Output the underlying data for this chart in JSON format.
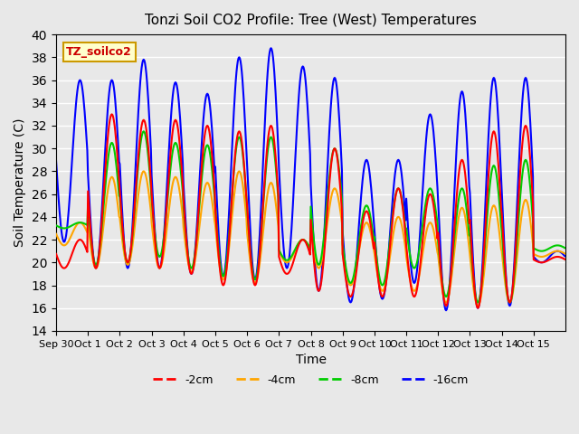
{
  "title": "Tonzi Soil CO2 Profile: Tree (West) Temperatures",
  "xlabel": "Time",
  "ylabel": "Soil Temperature (C)",
  "ylim": [
    14,
    40
  ],
  "yticks": [
    14,
    16,
    18,
    20,
    22,
    24,
    26,
    28,
    30,
    32,
    34,
    36,
    38,
    40
  ],
  "background_color": "#e8e8e8",
  "grid_color": "white",
  "colors": {
    "-2cm": "#ff0000",
    "-4cm": "#ffa500",
    "-8cm": "#00cc00",
    "-16cm": "#0000ff"
  },
  "legend_label": "TZ_soilco2",
  "legend_box_color": "#ffffcc",
  "legend_box_edge": "#cc9900",
  "x_tick_labels": [
    "Sep 30",
    "Oct 1",
    "Oct 2",
    "Oct 3",
    "Oct 4",
    "Oct 5",
    "Oct 6",
    "Oct 7",
    "Oct 8",
    "Oct 9",
    "Oct 10",
    "Oct 11",
    "Oct 12",
    "Oct 13",
    "Oct 14",
    "Oct 15"
  ],
  "line_width": 1.5,
  "mins_2cm": [
    19.5,
    19.5,
    20.0,
    19.5,
    19.0,
    18.0,
    18.0,
    19.0,
    17.5,
    17.0,
    17.0,
    17.0,
    16.2,
    16.0,
    16.5,
    20.0
  ],
  "maxs_2cm": [
    22.0,
    33.0,
    32.5,
    32.5,
    32.0,
    31.5,
    32.0,
    22.0,
    30.0,
    24.5,
    26.5,
    26.0,
    29.0,
    31.5,
    32.0,
    20.5
  ],
  "mins_4cm": [
    21.5,
    19.5,
    19.8,
    19.5,
    19.2,
    18.5,
    18.2,
    20.0,
    19.5,
    18.0,
    17.5,
    17.5,
    16.5,
    16.2,
    16.5,
    20.5
  ],
  "maxs_4cm": [
    23.5,
    27.5,
    28.0,
    27.5,
    27.0,
    28.0,
    27.0,
    22.0,
    26.5,
    23.5,
    24.0,
    23.5,
    24.8,
    25.0,
    25.5,
    21.0
  ],
  "mins_8cm": [
    23.0,
    19.8,
    20.0,
    20.5,
    19.5,
    18.8,
    18.5,
    20.2,
    19.8,
    18.2,
    18.0,
    19.5,
    17.0,
    16.5,
    16.5,
    21.0
  ],
  "maxs_8cm": [
    23.5,
    30.5,
    31.5,
    30.5,
    30.3,
    31.0,
    31.0,
    22.0,
    30.0,
    25.0,
    26.5,
    26.5,
    26.5,
    28.5,
    29.0,
    21.5
  ],
  "mins_16cm": [
    21.8,
    19.5,
    19.5,
    19.5,
    19.0,
    18.8,
    18.5,
    19.5,
    17.5,
    16.5,
    16.8,
    18.2,
    15.8,
    16.0,
    16.2,
    20.0
  ],
  "maxs_16cm": [
    36.0,
    36.0,
    37.8,
    35.8,
    34.8,
    38.0,
    38.8,
    37.2,
    36.2,
    29.0,
    29.0,
    33.0,
    35.0,
    36.2,
    36.2,
    21.0
  ]
}
